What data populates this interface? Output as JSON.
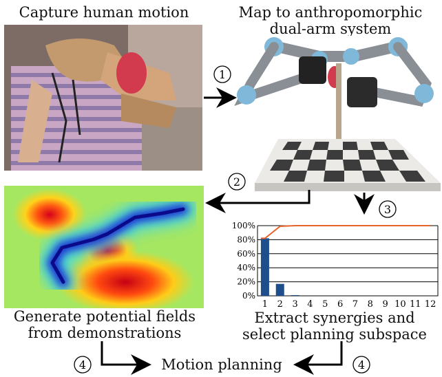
{
  "captions": {
    "capture": "Capture human motion",
    "map_line1": "Map to anthropomorphic",
    "map_line2": "dual-arm system",
    "generate_line1": "Generate potential fields",
    "generate_line2": "from demonstrations",
    "extract_line1": "Extract synergies and",
    "extract_line2": "select planning subspace",
    "motion_planning": "Motion planning"
  },
  "steps": {
    "one": "1",
    "two": "2",
    "three": "3",
    "four": "4"
  },
  "colors": {
    "bar": "#1f4e8c",
    "cumulative_line": "#e8632a",
    "arrow": "#000000"
  },
  "chart_data": {
    "type": "bar",
    "categories": [
      "1",
      "2",
      "3",
      "4",
      "5",
      "6",
      "7",
      "8",
      "9",
      "10",
      "11",
      "12"
    ],
    "series": [
      {
        "values": [
          82,
          17,
          1,
          0,
          0,
          0,
          0,
          0,
          0,
          0,
          0,
          0
        ]
      },
      {
        "type": "line",
        "values": [
          82,
          99,
          100,
          100,
          100,
          100,
          100,
          100,
          100,
          100,
          100,
          100
        ]
      }
    ],
    "ylim": [
      0,
      100
    ],
    "yticks": [
      "0%",
      "20%",
      "40%",
      "60%",
      "80%",
      "100%"
    ],
    "grid": true
  }
}
